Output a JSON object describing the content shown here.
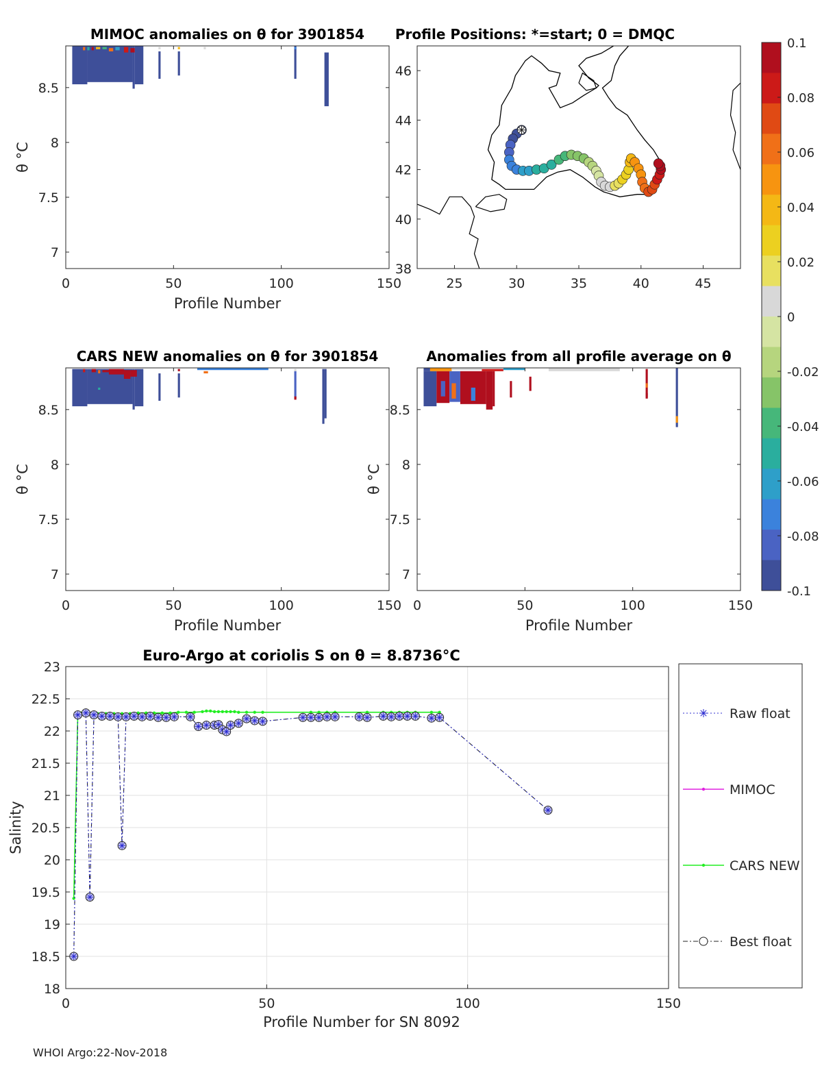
{
  "float_id": "3901854",
  "footer": "WHOI Argo:22-Nov-2018",
  "colorbar": {
    "tick_labels": [
      "0.1",
      "0.08",
      "0.06",
      "0.04",
      "0.02",
      "0",
      "-0.02",
      "-0.04",
      "-0.06",
      "-0.08",
      "-0.1"
    ],
    "tick_values": [
      0.1,
      0.08,
      0.06,
      0.04,
      0.02,
      0,
      -0.02,
      -0.04,
      -0.06,
      -0.08,
      -0.1
    ],
    "colors": [
      "#3e4f99",
      "#4a63c3",
      "#3b82dc",
      "#2e9fc9",
      "#2aae9e",
      "#46b77a",
      "#86c468",
      "#b6d57e",
      "#d5e4a3",
      "#d8d8d8",
      "#e8e060",
      "#ecd020",
      "#f4b815",
      "#f79410",
      "#f07018",
      "#e04a14",
      "#cc1a18",
      "#b00f1e"
    ]
  },
  "chart_data": [
    {
      "type": "heatmap",
      "title": "MIMOC anomalies on θ  for 3901854",
      "xlabel": "Profile Number",
      "ylabel": "θ °C",
      "xlim": [
        0,
        150
      ],
      "ylim": [
        6.85,
        8.88
      ],
      "xticks": [
        "0",
        "50",
        "100",
        "150"
      ],
      "yticks": [
        "7",
        "7.5",
        "8",
        "8.5"
      ],
      "ytick_values": [
        7,
        7.5,
        8,
        8.5
      ],
      "columns": [
        {
          "x0": 3,
          "x1": 10,
          "top": 8.88,
          "bottom": 8.53,
          "value": -0.09
        },
        {
          "x0": 10,
          "x1": 31,
          "top": 8.88,
          "bottom": 8.55,
          "value": -0.09
        },
        {
          "x0": 31,
          "x1": 32,
          "top": 8.88,
          "bottom": 8.49,
          "value": -0.09
        },
        {
          "x0": 32,
          "x1": 36,
          "top": 8.88,
          "bottom": 8.53,
          "value": -0.09
        },
        {
          "x0": 43,
          "x1": 44,
          "top": 8.83,
          "bottom": 8.58,
          "value": -0.09
        },
        {
          "x0": 52,
          "x1": 53,
          "top": 8.83,
          "bottom": 8.61,
          "value": -0.09
        },
        {
          "x0": 106,
          "x1": 107,
          "top": 8.88,
          "bottom": 8.58,
          "value": -0.09
        },
        {
          "x0": 120,
          "x1": 122,
          "top": 8.82,
          "bottom": 8.33,
          "value": -0.1
        }
      ],
      "patches": [
        {
          "x0": 8,
          "x1": 9,
          "top": 8.87,
          "bottom": 8.84,
          "value": 0.06
        },
        {
          "x0": 10,
          "x1": 11,
          "top": 8.87,
          "bottom": 8.84,
          "value": -0.05
        },
        {
          "x0": 12,
          "x1": 13,
          "top": 8.87,
          "bottom": 8.84,
          "value": 0.1
        },
        {
          "x0": 14,
          "x1": 16,
          "top": 8.87,
          "bottom": 8.85,
          "value": 0.04
        },
        {
          "x0": 17,
          "x1": 19,
          "top": 8.87,
          "bottom": 8.85,
          "value": -0.04
        },
        {
          "x0": 20,
          "x1": 22,
          "top": 8.86,
          "bottom": 8.83,
          "value": 0.06
        },
        {
          "x0": 23,
          "x1": 25,
          "top": 8.87,
          "bottom": 8.84,
          "value": -0.06
        },
        {
          "x0": 27,
          "x1": 29,
          "top": 8.87,
          "bottom": 8.82,
          "value": 0.08
        },
        {
          "x0": 30,
          "x1": 32,
          "top": 8.86,
          "bottom": 8.82,
          "value": 0.1
        },
        {
          "x0": 43,
          "x1": 44,
          "top": 8.87,
          "bottom": 8.85,
          "value": 0.0
        },
        {
          "x0": 52,
          "x1": 53,
          "top": 8.87,
          "bottom": 8.85,
          "value": 0.04
        },
        {
          "x0": 64,
          "x1": 65,
          "top": 8.87,
          "bottom": 8.85,
          "value": 0.01
        },
        {
          "x0": 106,
          "x1": 107,
          "top": 8.87,
          "bottom": 8.85,
          "value": -0.07
        }
      ]
    },
    {
      "type": "map",
      "title": "Profile Positions: *=start; 0 = DMQC",
      "xlim": [
        22,
        48
      ],
      "ylim": [
        38,
        47
      ],
      "xticks": [
        "25",
        "30",
        "35",
        "40",
        "45"
      ],
      "xtick_values": [
        25,
        30,
        35,
        40,
        45
      ],
      "yticks": [
        "38",
        "40",
        "42",
        "44",
        "46"
      ],
      "ytick_values": [
        38,
        40,
        42,
        44,
        46
      ],
      "start": {
        "lon": 30.4,
        "lat": 43.6
      },
      "track": [
        [
          30.4,
          43.6
        ],
        [
          30.0,
          43.45
        ],
        [
          29.7,
          43.25
        ],
        [
          29.5,
          43.0
        ],
        [
          29.4,
          42.7
        ],
        [
          29.4,
          42.4
        ],
        [
          29.6,
          42.15
        ],
        [
          30.0,
          42.0
        ],
        [
          30.5,
          41.95
        ],
        [
          31.0,
          41.95
        ],
        [
          31.6,
          42.0
        ],
        [
          32.2,
          42.05
        ],
        [
          32.8,
          42.2
        ],
        [
          33.4,
          42.4
        ],
        [
          33.9,
          42.55
        ],
        [
          34.4,
          42.6
        ],
        [
          34.9,
          42.55
        ],
        [
          35.4,
          42.45
        ],
        [
          35.8,
          42.3
        ],
        [
          36.1,
          42.15
        ],
        [
          36.4,
          41.95
        ],
        [
          36.6,
          41.75
        ],
        [
          36.8,
          41.5
        ],
        [
          37.1,
          41.35
        ],
        [
          37.5,
          41.3
        ],
        [
          37.9,
          41.35
        ],
        [
          38.2,
          41.45
        ],
        [
          38.5,
          41.6
        ],
        [
          38.8,
          41.8
        ],
        [
          39.0,
          42.0
        ],
        [
          39.1,
          42.3
        ],
        [
          39.2,
          42.45
        ],
        [
          39.5,
          42.3
        ],
        [
          39.8,
          42.05
        ],
        [
          40.0,
          41.8
        ],
        [
          40.1,
          41.5
        ],
        [
          40.3,
          41.25
        ],
        [
          40.6,
          41.1
        ],
        [
          40.9,
          41.2
        ],
        [
          41.1,
          41.4
        ],
        [
          41.3,
          41.6
        ],
        [
          41.5,
          41.8
        ],
        [
          41.6,
          42.0
        ],
        [
          41.55,
          42.15
        ],
        [
          41.4,
          42.25
        ]
      ]
    },
    {
      "type": "heatmap",
      "title": "CARS NEW anomalies on θ for 3901854",
      "xlabel": "Profile Number",
      "ylabel": "θ °C",
      "xlim": [
        0,
        150
      ],
      "ylim": [
        6.85,
        8.88
      ],
      "xticks": [
        "0",
        "50",
        "100",
        "150"
      ],
      "yticks": [
        "7",
        "7.5",
        "8",
        "8.5"
      ],
      "ytick_values": [
        7,
        7.5,
        8,
        8.5
      ],
      "columns": [
        {
          "x0": 3,
          "x1": 10,
          "top": 8.87,
          "bottom": 8.53,
          "value": -0.09
        },
        {
          "x0": 10,
          "x1": 31,
          "top": 8.87,
          "bottom": 8.55,
          "value": -0.09
        },
        {
          "x0": 31,
          "x1": 32,
          "top": 8.87,
          "bottom": 8.5,
          "value": -0.09
        },
        {
          "x0": 32,
          "x1": 36,
          "top": 8.87,
          "bottom": 8.53,
          "value": -0.09
        },
        {
          "x0": 43,
          "x1": 44,
          "top": 8.83,
          "bottom": 8.58,
          "value": -0.09
        },
        {
          "x0": 52,
          "x1": 53,
          "top": 8.83,
          "bottom": 8.61,
          "value": -0.09
        },
        {
          "x0": 106,
          "x1": 107,
          "top": 8.85,
          "bottom": 8.6,
          "value": -0.08
        },
        {
          "x0": 120,
          "x1": 121,
          "top": 8.87,
          "bottom": 8.42,
          "value": -0.1
        },
        {
          "x0": 119,
          "x1": 120,
          "top": 8.87,
          "bottom": 8.37,
          "value": -0.1
        },
        {
          "x0": 61,
          "x1": 94,
          "top": 8.88,
          "bottom": 8.86,
          "value": -0.07
        }
      ],
      "patches": [
        {
          "x0": 8,
          "x1": 9,
          "top": 8.87,
          "bottom": 8.84,
          "value": 0.08
        },
        {
          "x0": 12,
          "x1": 14,
          "top": 8.87,
          "bottom": 8.84,
          "value": 0.1
        },
        {
          "x0": 15,
          "x1": 16,
          "top": 8.86,
          "bottom": 8.83,
          "value": 0.06
        },
        {
          "x0": 17,
          "x1": 20,
          "top": 8.86,
          "bottom": 8.84,
          "value": 0.09
        },
        {
          "x0": 20,
          "x1": 27,
          "top": 8.87,
          "bottom": 8.82,
          "value": 0.1
        },
        {
          "x0": 27,
          "x1": 30,
          "top": 8.86,
          "bottom": 8.78,
          "value": 0.09
        },
        {
          "x0": 30,
          "x1": 33,
          "top": 8.86,
          "bottom": 8.8,
          "value": 0.1
        },
        {
          "x0": 15,
          "x1": 16,
          "top": 8.7,
          "bottom": 8.68,
          "value": -0.05
        },
        {
          "x0": 52,
          "x1": 53,
          "top": 8.87,
          "bottom": 8.85,
          "value": 0.09
        },
        {
          "x0": 106,
          "x1": 107,
          "top": 8.62,
          "bottom": 8.59,
          "value": 0.1
        },
        {
          "x0": 106,
          "x1": 107,
          "top": 8.87,
          "bottom": 8.85,
          "value": 0.0
        },
        {
          "x0": 64,
          "x1": 66,
          "top": 8.85,
          "bottom": 8.83,
          "value": 0.06
        }
      ]
    },
    {
      "type": "heatmap",
      "title": "Anomalies from all profile average on θ",
      "xlabel": "Profile Number",
      "ylabel": "θ °C",
      "xlim": [
        0,
        150
      ],
      "ylim": [
        6.85,
        8.88
      ],
      "xticks": [
        "0",
        "50",
        "100",
        "150"
      ],
      "yticks": [
        "7",
        "7.5",
        "8",
        "8.5"
      ],
      "ytick_values": [
        7,
        7.5,
        8,
        8.5
      ],
      "columns": [
        {
          "x0": 3,
          "x1": 9,
          "top": 8.85,
          "bottom": 8.53,
          "value": -0.09
        },
        {
          "x0": 9,
          "x1": 15,
          "top": 8.85,
          "bottom": 8.56,
          "value": 0.1
        },
        {
          "x0": 15,
          "x1": 20,
          "top": 8.85,
          "bottom": 8.57,
          "value": -0.08
        },
        {
          "x0": 20,
          "x1": 32,
          "top": 8.85,
          "bottom": 8.55,
          "value": 0.1
        },
        {
          "x0": 32,
          "x1": 35,
          "top": 8.85,
          "bottom": 8.5,
          "value": 0.1
        },
        {
          "x0": 35,
          "x1": 36,
          "top": 8.85,
          "bottom": 8.53,
          "value": 0.1
        },
        {
          "x0": 43,
          "x1": 44,
          "top": 8.76,
          "bottom": 8.61,
          "value": 0.1
        },
        {
          "x0": 52,
          "x1": 53,
          "top": 8.8,
          "bottom": 8.67,
          "value": 0.1
        },
        {
          "x0": 106,
          "x1": 107,
          "top": 8.87,
          "bottom": 8.61,
          "value": 0.09
        },
        {
          "x0": 120,
          "x1": 121,
          "top": 8.88,
          "bottom": 8.34,
          "value": -0.09
        },
        {
          "x0": 61,
          "x1": 94,
          "top": 8.88,
          "bottom": 8.85,
          "value": 0.0
        }
      ],
      "patches": [
        {
          "x0": 3,
          "x1": 6,
          "top": 8.88,
          "bottom": 8.85,
          "value": -0.09
        },
        {
          "x0": 6,
          "x1": 16,
          "top": 8.88,
          "bottom": 8.85,
          "value": 0.05
        },
        {
          "x0": 16,
          "x1": 30,
          "top": 8.88,
          "bottom": 8.86,
          "value": 0.0
        },
        {
          "x0": 30,
          "x1": 40,
          "top": 8.87,
          "bottom": 8.85,
          "value": 0.08
        },
        {
          "x0": 40,
          "x1": 50,
          "top": 8.88,
          "bottom": 8.86,
          "value": -0.06
        },
        {
          "x0": 11,
          "x1": 13,
          "top": 8.76,
          "bottom": 8.62,
          "value": -0.08
        },
        {
          "x0": 16,
          "x1": 18,
          "top": 8.74,
          "bottom": 8.6,
          "value": 0.06
        },
        {
          "x0": 25,
          "x1": 27,
          "top": 8.7,
          "bottom": 8.58,
          "value": -0.07
        },
        {
          "x0": 106,
          "x1": 107,
          "top": 8.65,
          "bottom": 8.6,
          "value": 0.1
        },
        {
          "x0": 106,
          "x1": 107,
          "top": 8.74,
          "bottom": 8.7,
          "value": 0.06
        },
        {
          "x0": 120,
          "x1": 121,
          "top": 8.44,
          "bottom": 8.38,
          "value": 0.05
        }
      ]
    },
    {
      "type": "line",
      "title": "Euro-Argo at coriolis S on θ = 8.8736°C",
      "xlabel": "Profile Number for SN 8092",
      "ylabel": "Salinity",
      "xlim": [
        0,
        150
      ],
      "ylim": [
        18,
        23
      ],
      "xticks": [
        "0",
        "50",
        "100",
        "150"
      ],
      "yticks": [
        "18",
        "18.5",
        "19",
        "19.5",
        "20",
        "20.5",
        "21",
        "21.5",
        "22",
        "22.5",
        "23"
      ],
      "ytick_values": [
        18,
        18.5,
        19,
        19.5,
        20,
        20.5,
        21,
        21.5,
        22,
        22.5,
        23
      ],
      "legend": [
        "Raw float",
        "MIMOC",
        "CARS NEW",
        "Best float"
      ],
      "legend_position": "outside-right",
      "series": [
        {
          "name": "Raw float",
          "x": [
            2,
            3,
            5,
            6,
            7,
            9,
            11,
            13,
            14,
            15,
            17,
            19,
            21,
            23,
            25,
            27,
            31,
            33,
            35,
            37,
            38,
            39,
            40,
            41,
            43,
            45,
            47,
            49,
            59,
            61,
            63,
            65,
            67,
            73,
            75,
            79,
            81,
            83,
            85,
            87,
            91,
            93,
            120
          ],
          "y": [
            18.5,
            22.25,
            22.28,
            19.42,
            22.25,
            22.23,
            22.23,
            22.22,
            20.22,
            22.22,
            22.23,
            22.22,
            22.23,
            22.21,
            22.21,
            22.22,
            22.22,
            22.07,
            22.09,
            22.09,
            22.1,
            22.02,
            21.99,
            22.09,
            22.12,
            22.19,
            22.16,
            22.15,
            22.21,
            22.21,
            22.21,
            22.22,
            22.22,
            22.22,
            22.21,
            22.23,
            22.22,
            22.23,
            22.23,
            22.23,
            22.2,
            22.21,
            20.77
          ]
        },
        {
          "name": "CARS NEW",
          "x": [
            2,
            3,
            4,
            5,
            6,
            7,
            8,
            10,
            12,
            14,
            16,
            18,
            20,
            22,
            24,
            26,
            28,
            30,
            32,
            34,
            35,
            36,
            37,
            38,
            39,
            40,
            41,
            42,
            43,
            45,
            47,
            49,
            61,
            63,
            65,
            67,
            75,
            79,
            81,
            83,
            85,
            87,
            91,
            93
          ],
          "y": [
            19.4,
            22.27,
            22.28,
            22.28,
            22.27,
            22.27,
            22.27,
            22.27,
            22.27,
            22.27,
            22.27,
            22.28,
            22.28,
            22.28,
            22.28,
            22.28,
            22.29,
            22.29,
            22.29,
            22.3,
            22.31,
            22.31,
            22.3,
            22.3,
            22.3,
            22.3,
            22.3,
            22.3,
            22.29,
            22.29,
            22.29,
            22.29,
            22.29,
            22.29,
            22.29,
            22.29,
            22.29,
            22.29,
            22.29,
            22.29,
            22.29,
            22.29,
            22.29,
            22.29
          ]
        },
        {
          "name": "Best float",
          "x": [
            2,
            3,
            5,
            6,
            7,
            9,
            11,
            13,
            14,
            15,
            17,
            19,
            21,
            23,
            25,
            27,
            31,
            33,
            35,
            37,
            38,
            39,
            40,
            41,
            43,
            45,
            47,
            49,
            59,
            61,
            63,
            65,
            67,
            73,
            75,
            79,
            81,
            83,
            85,
            87,
            91,
            93,
            120
          ],
          "y": [
            18.5,
            22.25,
            22.28,
            19.42,
            22.25,
            22.23,
            22.23,
            22.22,
            20.22,
            22.22,
            22.23,
            22.22,
            22.23,
            22.21,
            22.21,
            22.22,
            22.22,
            22.07,
            22.09,
            22.09,
            22.1,
            22.02,
            21.99,
            22.09,
            22.12,
            22.19,
            22.16,
            22.15,
            22.21,
            22.21,
            22.21,
            22.22,
            22.22,
            22.22,
            22.21,
            22.23,
            22.22,
            22.23,
            22.23,
            22.23,
            22.2,
            22.21,
            20.77
          ]
        }
      ]
    }
  ]
}
